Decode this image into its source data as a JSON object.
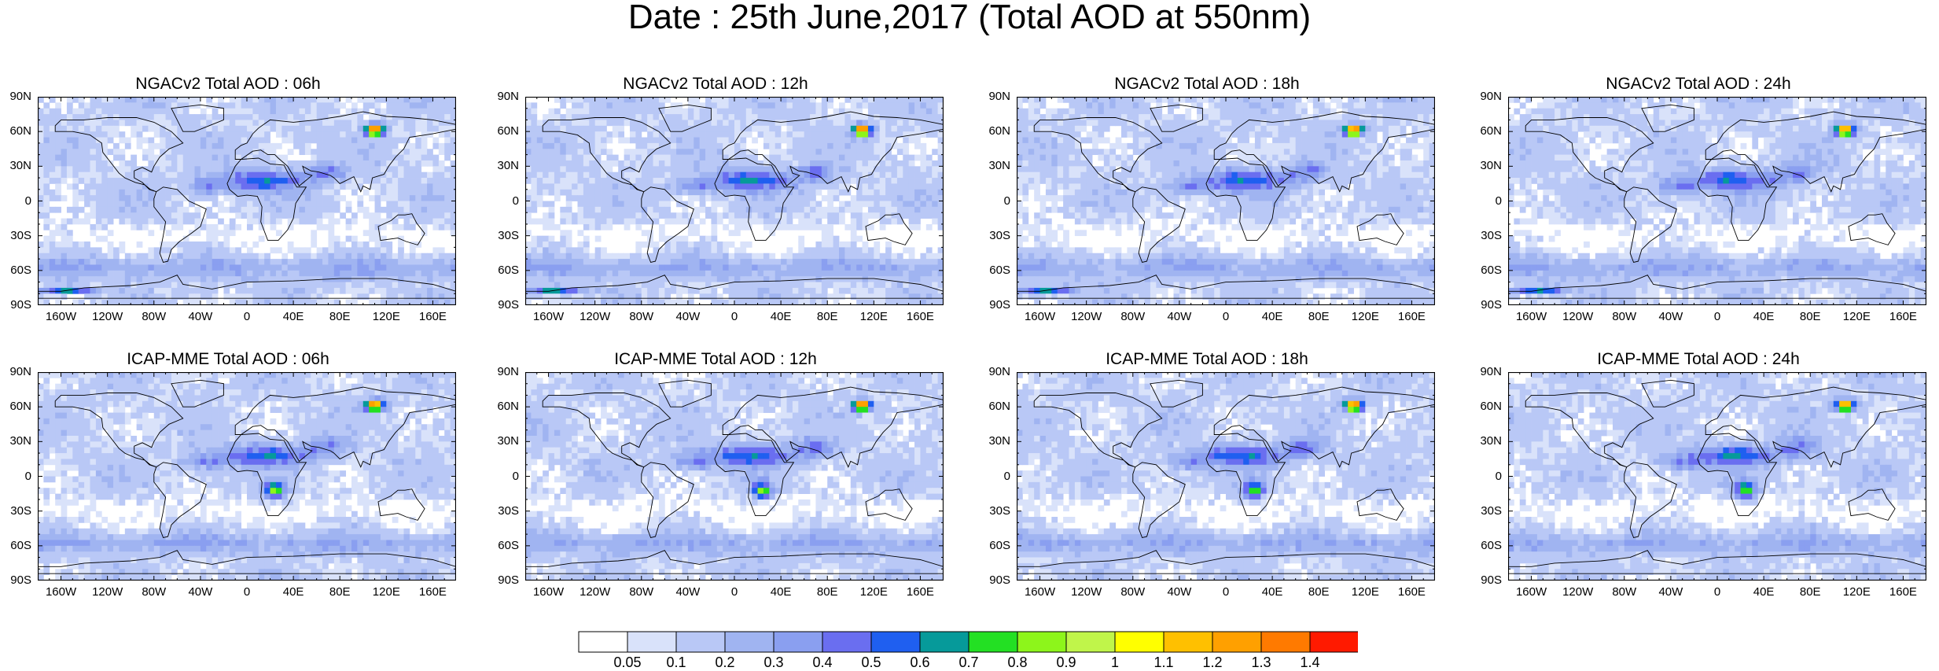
{
  "title": "Date : 25th June,2017 (Total AOD at 550nm)",
  "panels": [
    {
      "title": "NGACv2 Total AOD : 06h",
      "model": "NGACv2",
      "hour": "06h"
    },
    {
      "title": "NGACv2 Total AOD : 12h",
      "model": "NGACv2",
      "hour": "12h"
    },
    {
      "title": "NGACv2 Total AOD : 18h",
      "model": "NGACv2",
      "hour": "18h"
    },
    {
      "title": "NGACv2 Total AOD : 24h",
      "model": "NGACv2",
      "hour": "24h"
    },
    {
      "title": "ICAP-MME Total AOD : 06h",
      "model": "ICAP-MME",
      "hour": "06h"
    },
    {
      "title": "ICAP-MME Total AOD : 12h",
      "model": "ICAP-MME",
      "hour": "12h"
    },
    {
      "title": "ICAP-MME Total AOD : 18h",
      "model": "ICAP-MME",
      "hour": "18h"
    },
    {
      "title": "ICAP-MME Total AOD : 24h",
      "model": "ICAP-MME",
      "hour": "24h"
    }
  ],
  "lat_ticks": [
    "90N",
    "60N",
    "30N",
    "0",
    "30S",
    "60S",
    "90S"
  ],
  "lon_ticks": [
    "160W",
    "120W",
    "80W",
    "40W",
    "0",
    "40E",
    "80E",
    "120E",
    "160E"
  ],
  "lon_tick_values": [
    -160,
    -120,
    -80,
    -40,
    0,
    40,
    80,
    120,
    160
  ],
  "colorbar": {
    "labels": [
      "0.05",
      "0.1",
      "0.2",
      "0.3",
      "0.4",
      "0.5",
      "0.6",
      "0.7",
      "0.8",
      "0.9",
      "1",
      "1.1",
      "1.2",
      "1.3",
      "1.4"
    ],
    "colors": [
      "#ffffff",
      "#d9e2fa",
      "#b9c8f6",
      "#a0b4f1",
      "#8a9ff0",
      "#6a6ef0",
      "#1f5ff0",
      "#069a9a",
      "#23e023",
      "#8df51b",
      "#c0f54a",
      "#ffff00",
      "#ffc000",
      "#ffa000",
      "#ff7a00",
      "#ff1a00"
    ]
  }
}
